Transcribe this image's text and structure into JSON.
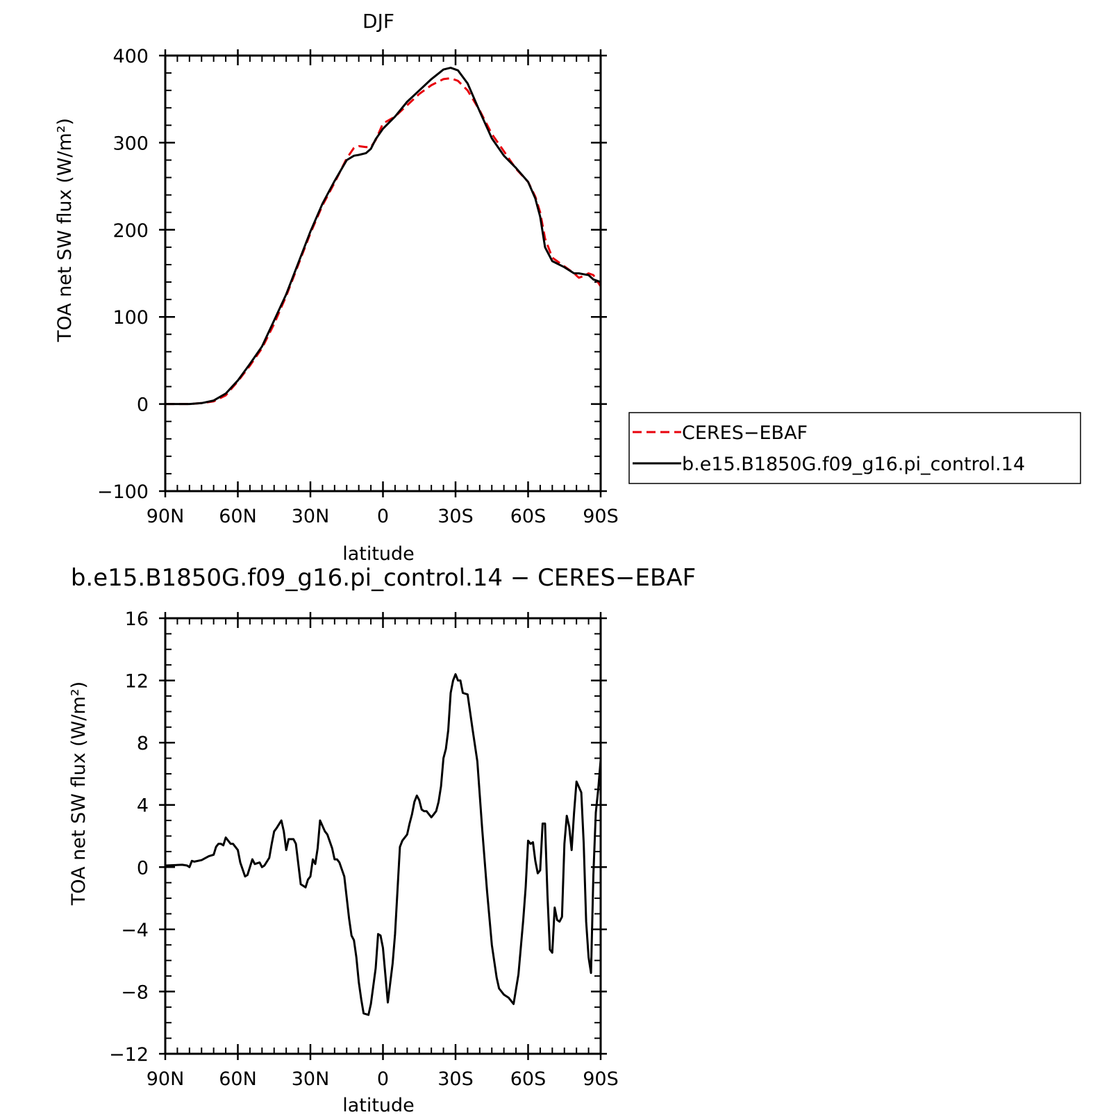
{
  "chart_data": [
    {
      "type": "line",
      "title": "DJF",
      "xlabel": "latitude",
      "ylabel": "TOA net SW flux (W/m²)",
      "xlim": [
        90,
        -90
      ],
      "ylim": [
        -100,
        400
      ],
      "xticks": [
        90,
        60,
        30,
        0,
        -30,
        -60,
        -90
      ],
      "xtick_labels": [
        "90N",
        "60N",
        "30N",
        "0",
        "30S",
        "60S",
        "90S"
      ],
      "yticks": [
        -100,
        0,
        100,
        200,
        300,
        400
      ],
      "ytick_labels": [
        "−100",
        "0",
        "100",
        "200",
        "300",
        "400"
      ],
      "legend_position": "right",
      "series": [
        {
          "name": "CERES−EBAF",
          "color": "#e8000b",
          "dashed": true,
          "x": [
            90,
            85,
            80,
            75,
            70,
            65,
            60,
            55,
            50,
            45,
            40,
            35,
            30,
            25,
            20,
            15,
            12,
            10,
            7,
            5,
            3,
            0,
            -5,
            -10,
            -15,
            -20,
            -25,
            -28,
            -31,
            -35,
            -40,
            -45,
            -50,
            -55,
            -60,
            -63,
            -65,
            -67,
            -70,
            -75,
            -79,
            -81,
            -83,
            -85,
            -87,
            -90
          ],
          "y": [
            0,
            0,
            0,
            1,
            3,
            10,
            26,
            44,
            64,
            92,
            124,
            160,
            196,
            228,
            254,
            282,
            294,
            296,
            295,
            295,
            303,
            322,
            330,
            343,
            356,
            366,
            373,
            374,
            371,
            360,
            337,
            310,
            290,
            270,
            255,
            238,
            220,
            190,
            168,
            158,
            150,
            145,
            147,
            150,
            148,
            135
          ]
        },
        {
          "name": "b.e15.B1850G.f09_g16.pi_control.14",
          "color": "#000000",
          "dashed": false,
          "x": [
            90,
            85,
            80,
            75,
            70,
            65,
            60,
            55,
            50,
            45,
            40,
            35,
            30,
            25,
            20,
            15,
            12,
            10,
            7,
            5,
            3,
            0,
            -5,
            -10,
            -15,
            -20,
            -25,
            -28,
            -31,
            -35,
            -40,
            -45,
            -50,
            -55,
            -60,
            -63,
            -65,
            -67,
            -70,
            -75,
            -79,
            -81,
            -83,
            -85,
            -87,
            -90
          ],
          "y": [
            0,
            0,
            0,
            1,
            4,
            12,
            27,
            46,
            66,
            96,
            126,
            162,
            198,
            230,
            256,
            280,
            285,
            286,
            288,
            293,
            304,
            316,
            330,
            347,
            360,
            373,
            384,
            386,
            383,
            368,
            336,
            305,
            285,
            271,
            255,
            236,
            215,
            180,
            164,
            157,
            150,
            150,
            149,
            148,
            143,
            140
          ]
        }
      ]
    },
    {
      "type": "line",
      "title": "b.e15.B1850G.f09_g16.pi_control.14 − CERES−EBAF",
      "xlabel": "latitude",
      "ylabel": "TOA net SW flux (W/m²)",
      "xlim": [
        90,
        -90
      ],
      "ylim": [
        -12,
        16
      ],
      "xticks": [
        90,
        60,
        30,
        0,
        -30,
        -60,
        -90
      ],
      "xtick_labels": [
        "90N",
        "60N",
        "30N",
        "0",
        "30S",
        "60S",
        "90S"
      ],
      "yticks": [
        -12,
        -8,
        -4,
        0,
        4,
        8,
        12,
        16
      ],
      "ytick_labels": [
        "−12",
        "−8",
        "−4",
        "0",
        "4",
        "8",
        "12",
        "16"
      ],
      "series": [
        {
          "color": "#000000",
          "dashed": false,
          "x": [
            90,
            83,
            81,
            80,
            79,
            78,
            75,
            72,
            70,
            69,
            68,
            67,
            66,
            65,
            63,
            62,
            60,
            59,
            57,
            56,
            55,
            54,
            53,
            51,
            50,
            49,
            47,
            46,
            45,
            44,
            42,
            41,
            40,
            39,
            37,
            36,
            35,
            34,
            32,
            31,
            30,
            29,
            28,
            27,
            26,
            24,
            23,
            21,
            20,
            19,
            18,
            16,
            14,
            13,
            12,
            11,
            10,
            9,
            8,
            6,
            5,
            3,
            2,
            1,
            0,
            -2,
            -4,
            -5,
            -7,
            -8,
            -10,
            -11,
            -12,
            -13,
            -14,
            -15,
            -16,
            -17,
            -18,
            -20,
            -21,
            -22,
            -23,
            -24,
            -25,
            -26,
            -27,
            -28,
            -29,
            -30,
            -31,
            -32,
            -33,
            -35,
            -37,
            -39,
            -41,
            -43,
            -45,
            -47,
            -48,
            -49,
            -50,
            -52,
            -54,
            -56,
            -58,
            -59,
            -60,
            -61,
            -62,
            -63,
            -64,
            -65,
            -66,
            -67,
            -68,
            -69,
            -70,
            -71,
            -72,
            -73,
            -74,
            -75,
            -76,
            -77,
            -78,
            -79,
            -80,
            -82,
            -83,
            -84,
            -85,
            -86,
            -87,
            -88,
            -89,
            -90
          ],
          "y": [
            0.1,
            0.15,
            0.1,
            0,
            0.4,
            0.35,
            0.45,
            0.7,
            0.8,
            1.3,
            1.5,
            1.5,
            1.4,
            1.9,
            1.5,
            1.5,
            1.1,
            0.3,
            -0.6,
            -0.5,
            0,
            0.5,
            0.2,
            0.3,
            0,
            0.1,
            0.6,
            1.5,
            2.3,
            2.5,
            3,
            2.3,
            1.1,
            1.8,
            1.8,
            1.5,
            0.2,
            -1.1,
            -1.3,
            -0.8,
            -0.6,
            0.5,
            0.2,
            1.2,
            3,
            2.3,
            2.1,
            1.2,
            0.5,
            0.5,
            0.3,
            -0.6,
            -3.3,
            -4.4,
            -4.7,
            -5.8,
            -7.4,
            -8.5,
            -9.4,
            -9.5,
            -8.8,
            -6.5,
            -4.3,
            -4.4,
            -5.2,
            -8.7,
            -6.2,
            -4.3,
            1.3,
            1.7,
            2.1,
            2.8,
            3.4,
            4.2,
            4.6,
            4.3,
            3.7,
            3.6,
            3.6,
            3.2,
            3.4,
            3.6,
            4.2,
            5.2,
            7.0,
            7.6,
            8.8,
            11.2,
            12.0,
            12.4,
            12.0,
            12.0,
            11.2,
            11.1,
            8.9,
            6.8,
            2.5,
            -1.5,
            -5.0,
            -7.1,
            -7.8,
            -8.0,
            -8.2,
            -8.4,
            -8.8,
            -6.9,
            -3.4,
            -1.3,
            1.7,
            1.5,
            1.6,
            0.4,
            -0.4,
            -0.2,
            2.8,
            2.8,
            -1.8,
            -5.3,
            -5.5,
            -2.6,
            -3.4,
            -3.5,
            -3.2,
            1.5,
            3.3,
            2.6,
            1.1,
            3.5,
            5.5,
            4.8,
            1.5,
            -3.5,
            -5.8,
            -6.8,
            -0.5,
            3.5,
            5.0,
            6.9
          ]
        }
      ]
    }
  ],
  "legend": {
    "entries": [
      {
        "label": "CERES−EBAF",
        "color": "#e8000b",
        "dashed": true
      },
      {
        "label": "b.e15.B1850G.f09_g16.pi_control.14",
        "color": "#000000",
        "dashed": false
      }
    ]
  }
}
